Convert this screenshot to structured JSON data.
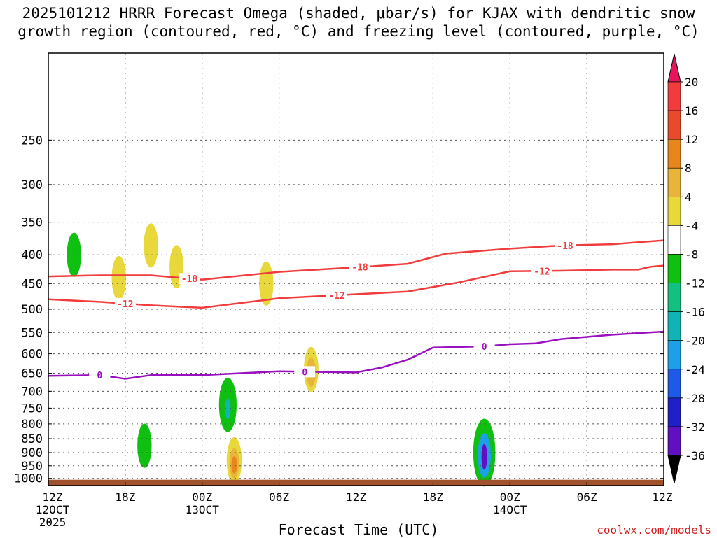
{
  "title": "2025101212 HRRR Forecast Omega (shaded, μbar/s) for KJAX with dendritic snow growth region (contoured, red, °C) and freezing level (contoured, purple, °C)",
  "xlabel": "Forecast Time (UTC)",
  "credit": "coolwx.com/models",
  "chart_data": {
    "type": "contour",
    "x_hours": [
      0,
      6,
      12,
      18,
      24,
      30,
      36,
      42,
      48
    ],
    "x_ticks": [
      {
        "hour": 0,
        "label": "12Z",
        "date": "12OCT",
        "year": "2025"
      },
      {
        "hour": 6,
        "label": "18Z"
      },
      {
        "hour": 12,
        "label": "00Z",
        "date": "13OCT"
      },
      {
        "hour": 18,
        "label": "06Z"
      },
      {
        "hour": 24,
        "label": "12Z"
      },
      {
        "hour": 30,
        "label": "18Z"
      },
      {
        "hour": 36,
        "label": "00Z",
        "date": "14OCT"
      },
      {
        "hour": 42,
        "label": "06Z"
      },
      {
        "hour": 48,
        "label": "12Z"
      }
    ],
    "y_ticks": [
      250,
      300,
      350,
      400,
      450,
      500,
      550,
      600,
      650,
      700,
      750,
      800,
      850,
      900,
      950,
      1000
    ],
    "ylim_hPa": [
      175,
      1030
    ],
    "colorbar": {
      "levels": [
        20,
        16,
        12,
        8,
        4,
        -4,
        -8,
        -12,
        -16,
        -20,
        -24,
        -28,
        -32,
        -36
      ],
      "colors": [
        "#e8155e",
        "#f03c3c",
        "#e84a2a",
        "#e8861e",
        "#e8b43c",
        "#e8d83c",
        "#ffffff",
        "#10c010",
        "#14c080",
        "#10b4b4",
        "#1ea0e8",
        "#1e5ae8",
        "#2020c8",
        "#6010c0",
        "#9a10c0",
        "#a0a0a0",
        "#000000"
      ]
    },
    "contour_minus18": {
      "label": "-18",
      "color": "#f03c3c",
      "points": [
        [
          0,
          437
        ],
        [
          4,
          435
        ],
        [
          8,
          435
        ],
        [
          12,
          443
        ],
        [
          18,
          429
        ],
        [
          24,
          421
        ],
        [
          28,
          415
        ],
        [
          31,
          398
        ],
        [
          36,
          390
        ],
        [
          40,
          385
        ],
        [
          44,
          383
        ],
        [
          48,
          377
        ]
      ]
    },
    "contour_minus12": {
      "label": "-12",
      "color": "#f03c3c",
      "points": [
        [
          0,
          480
        ],
        [
          4,
          485
        ],
        [
          8,
          492
        ],
        [
          12,
          497
        ],
        [
          18,
          478
        ],
        [
          24,
          470
        ],
        [
          28,
          465
        ],
        [
          32,
          448
        ],
        [
          36,
          428
        ],
        [
          40,
          427
        ],
        [
          44,
          425
        ],
        [
          46,
          425
        ],
        [
          47,
          420
        ],
        [
          48,
          418
        ]
      ]
    },
    "contour_zero": {
      "label": "0",
      "color": "#9a10c0",
      "points": [
        [
          0,
          657
        ],
        [
          4,
          655
        ],
        [
          6,
          665
        ],
        [
          8,
          655
        ],
        [
          12,
          655
        ],
        [
          18,
          645
        ],
        [
          24,
          648
        ],
        [
          26,
          635
        ],
        [
          28,
          615
        ],
        [
          30,
          585
        ],
        [
          34,
          582
        ],
        [
          36,
          577
        ],
        [
          38,
          575
        ],
        [
          40,
          565
        ],
        [
          44,
          555
        ],
        [
          48,
          548
        ]
      ]
    },
    "ground": {
      "color": "#a0522d",
      "top_hPa": 1000
    },
    "omega_blobs": [
      {
        "hour": 2.0,
        "p": 400,
        "value": -6
      },
      {
        "hour": 5.5,
        "p": 440,
        "value": 6
      },
      {
        "hour": 8.0,
        "p": 385,
        "value": 6
      },
      {
        "hour": 10.0,
        "p": 420,
        "value": 5
      },
      {
        "hour": 7.5,
        "p": 875,
        "value": -6
      },
      {
        "hour": 14.0,
        "p": 740,
        "value": -18
      },
      {
        "hour": 17.0,
        "p": 450,
        "value": 6
      },
      {
        "hour": 14.5,
        "p": 930,
        "value": 9
      },
      {
        "hour": 20.5,
        "p": 640,
        "value": 7
      },
      {
        "hour": 34.0,
        "p": 900,
        "value": -34
      }
    ]
  }
}
